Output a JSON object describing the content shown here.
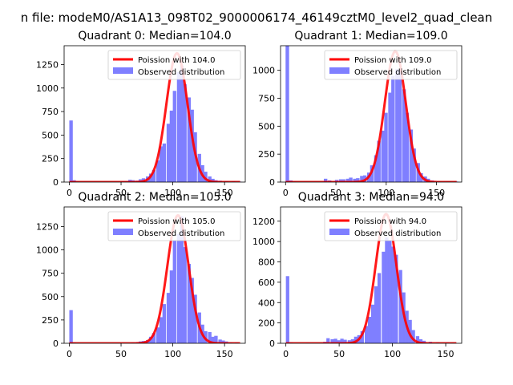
{
  "figure": {
    "suptitle": "n file: modeM0/AS1A13_098T02_9000006174_46149cztM0_level2_quad_clean"
  },
  "chart_data": [
    {
      "type": "bar",
      "title": "Quadrant 0: Median=104.0",
      "xlim": [
        -5,
        170
      ],
      "ylim": [
        0,
        1450
      ],
      "xticks": [
        0,
        50,
        100,
        150
      ],
      "yticks": [
        0,
        250,
        500,
        750,
        1000,
        1250
      ],
      "bin_width": 3.36,
      "hist_color": "#7f7fff",
      "fit_color": "#ff0000",
      "legend": {
        "placement": "top-right",
        "fit_label": "Poission with 104.0",
        "hist_label": "Observed distribution"
      },
      "poisson_mean": 104.0,
      "poisson_peak": 1370,
      "hist": [
        {
          "x": 0,
          "y": 655
        },
        {
          "x": 3,
          "y": 20
        },
        {
          "x": 6,
          "y": 5
        },
        {
          "x": 50,
          "y": 8
        },
        {
          "x": 54,
          "y": 10
        },
        {
          "x": 57,
          "y": 25
        },
        {
          "x": 60,
          "y": 20
        },
        {
          "x": 64,
          "y": 15
        },
        {
          "x": 67,
          "y": 30
        },
        {
          "x": 70,
          "y": 40
        },
        {
          "x": 74,
          "y": 60
        },
        {
          "x": 77,
          "y": 90
        },
        {
          "x": 80,
          "y": 130
        },
        {
          "x": 84,
          "y": 230
        },
        {
          "x": 87,
          "y": 380
        },
        {
          "x": 90,
          "y": 410
        },
        {
          "x": 94,
          "y": 620
        },
        {
          "x": 97,
          "y": 760
        },
        {
          "x": 100,
          "y": 970
        },
        {
          "x": 104,
          "y": 1170
        },
        {
          "x": 107,
          "y": 1240
        },
        {
          "x": 110,
          "y": 1040
        },
        {
          "x": 114,
          "y": 900
        },
        {
          "x": 117,
          "y": 770
        },
        {
          "x": 120,
          "y": 530
        },
        {
          "x": 124,
          "y": 300
        },
        {
          "x": 127,
          "y": 180
        },
        {
          "x": 130,
          "y": 110
        },
        {
          "x": 134,
          "y": 60
        },
        {
          "x": 137,
          "y": 35
        },
        {
          "x": 140,
          "y": 20
        },
        {
          "x": 144,
          "y": 15
        },
        {
          "x": 150,
          "y": 10
        },
        {
          "x": 157,
          "y": 8
        },
        {
          "x": 163,
          "y": 5
        }
      ]
    },
    {
      "type": "bar",
      "title": "Quadrant 1: Median=109.0",
      "xlim": [
        -5,
        175
      ],
      "ylim": [
        0,
        1220
      ],
      "xticks": [
        0,
        50,
        100,
        150
      ],
      "yticks": [
        0,
        250,
        500,
        750,
        1000
      ],
      "bin_width": 3.5,
      "hist_color": "#7f7fff",
      "fit_color": "#ff0000",
      "legend": {
        "placement": "top-right",
        "fit_label": "Poission with 109.0",
        "hist_label": "Observed distribution"
      },
      "poisson_mean": 109.0,
      "poisson_peak": 1170,
      "hist": [
        {
          "x": 0,
          "y": 1220
        },
        {
          "x": 3.5,
          "y": 15
        },
        {
          "x": 7,
          "y": 5
        },
        {
          "x": 38,
          "y": 30
        },
        {
          "x": 42,
          "y": 15
        },
        {
          "x": 49,
          "y": 20
        },
        {
          "x": 53,
          "y": 25
        },
        {
          "x": 56,
          "y": 25
        },
        {
          "x": 60,
          "y": 30
        },
        {
          "x": 63,
          "y": 40
        },
        {
          "x": 67,
          "y": 30
        },
        {
          "x": 70,
          "y": 35
        },
        {
          "x": 74,
          "y": 55
        },
        {
          "x": 77,
          "y": 60
        },
        {
          "x": 81,
          "y": 85
        },
        {
          "x": 84,
          "y": 150
        },
        {
          "x": 88,
          "y": 240
        },
        {
          "x": 91,
          "y": 370
        },
        {
          "x": 95,
          "y": 460
        },
        {
          "x": 98,
          "y": 620
        },
        {
          "x": 102,
          "y": 800
        },
        {
          "x": 105,
          "y": 950
        },
        {
          "x": 109,
          "y": 1010
        },
        {
          "x": 112,
          "y": 1000
        },
        {
          "x": 116,
          "y": 830
        },
        {
          "x": 119,
          "y": 620
        },
        {
          "x": 123,
          "y": 470
        },
        {
          "x": 126,
          "y": 300
        },
        {
          "x": 130,
          "y": 170
        },
        {
          "x": 133,
          "y": 80
        },
        {
          "x": 137,
          "y": 50
        },
        {
          "x": 140,
          "y": 30
        },
        {
          "x": 144,
          "y": 15
        },
        {
          "x": 150,
          "y": 8
        },
        {
          "x": 160,
          "y": 5
        },
        {
          "x": 168,
          "y": 5
        }
      ]
    },
    {
      "type": "bar",
      "title": "Quadrant 2: Median=105.0",
      "xlim": [
        -5,
        170
      ],
      "ylim": [
        0,
        1460
      ],
      "xticks": [
        0,
        50,
        100,
        150
      ],
      "yticks": [
        0,
        250,
        500,
        750,
        1000,
        1250
      ],
      "bin_width": 3.36,
      "hist_color": "#7f7fff",
      "fit_color": "#ff0000",
      "legend": {
        "placement": "top-right",
        "fit_label": "Poission with 105.0",
        "hist_label": "Observed distribution"
      },
      "poisson_mean": 105.0,
      "poisson_peak": 1370,
      "hist": [
        {
          "x": 0,
          "y": 355
        },
        {
          "x": 3,
          "y": 10
        },
        {
          "x": 60,
          "y": 8
        },
        {
          "x": 64,
          "y": 10
        },
        {
          "x": 67,
          "y": 20
        },
        {
          "x": 70,
          "y": 25
        },
        {
          "x": 74,
          "y": 35
        },
        {
          "x": 77,
          "y": 70
        },
        {
          "x": 80,
          "y": 110
        },
        {
          "x": 84,
          "y": 170
        },
        {
          "x": 87,
          "y": 280
        },
        {
          "x": 90,
          "y": 420
        },
        {
          "x": 94,
          "y": 540
        },
        {
          "x": 97,
          "y": 780
        },
        {
          "x": 100,
          "y": 1100
        },
        {
          "x": 104,
          "y": 1170
        },
        {
          "x": 107,
          "y": 1360
        },
        {
          "x": 110,
          "y": 1030
        },
        {
          "x": 114,
          "y": 850
        },
        {
          "x": 117,
          "y": 700
        },
        {
          "x": 120,
          "y": 520
        },
        {
          "x": 124,
          "y": 330
        },
        {
          "x": 127,
          "y": 200
        },
        {
          "x": 130,
          "y": 130
        },
        {
          "x": 134,
          "y": 120
        },
        {
          "x": 137,
          "y": 70
        },
        {
          "x": 140,
          "y": 80
        },
        {
          "x": 144,
          "y": 40
        },
        {
          "x": 147,
          "y": 30
        },
        {
          "x": 150,
          "y": 20
        },
        {
          "x": 154,
          "y": 10
        },
        {
          "x": 160,
          "y": 8
        }
      ]
    },
    {
      "type": "bar",
      "title": "Quadrant 3: Median=94.0",
      "xlim": [
        -5,
        165
      ],
      "ylim": [
        0,
        1340
      ],
      "xticks": [
        0,
        50,
        100,
        150
      ],
      "yticks": [
        0,
        200,
        400,
        600,
        800,
        1000,
        1200
      ],
      "bin_width": 3.2,
      "hist_color": "#7f7fff",
      "fit_color": "#ff0000",
      "legend": {
        "placement": "top-right",
        "fit_label": "Poission with 94.0",
        "hist_label": "Observed distribution"
      },
      "poisson_mean": 94.0,
      "poisson_peak": 1270,
      "hist": [
        {
          "x": 0,
          "y": 660
        },
        {
          "x": 3,
          "y": 10
        },
        {
          "x": 19,
          "y": 5
        },
        {
          "x": 35,
          "y": 15
        },
        {
          "x": 38,
          "y": 50
        },
        {
          "x": 42,
          "y": 40
        },
        {
          "x": 45,
          "y": 45
        },
        {
          "x": 48,
          "y": 30
        },
        {
          "x": 51,
          "y": 45
        },
        {
          "x": 54,
          "y": 35
        },
        {
          "x": 58,
          "y": 30
        },
        {
          "x": 61,
          "y": 40
        },
        {
          "x": 64,
          "y": 65
        },
        {
          "x": 67,
          "y": 80
        },
        {
          "x": 70,
          "y": 120
        },
        {
          "x": 74,
          "y": 170
        },
        {
          "x": 77,
          "y": 260
        },
        {
          "x": 80,
          "y": 380
        },
        {
          "x": 83,
          "y": 560
        },
        {
          "x": 86,
          "y": 690
        },
        {
          "x": 90,
          "y": 900
        },
        {
          "x": 93,
          "y": 1040
        },
        {
          "x": 96,
          "y": 1010
        },
        {
          "x": 99,
          "y": 950
        },
        {
          "x": 102,
          "y": 870
        },
        {
          "x": 106,
          "y": 720
        },
        {
          "x": 109,
          "y": 500
        },
        {
          "x": 112,
          "y": 320
        },
        {
          "x": 115,
          "y": 230
        },
        {
          "x": 118,
          "y": 130
        },
        {
          "x": 122,
          "y": 70
        },
        {
          "x": 125,
          "y": 40
        },
        {
          "x": 128,
          "y": 25
        },
        {
          "x": 134,
          "y": 15
        },
        {
          "x": 141,
          "y": 10
        },
        {
          "x": 150,
          "y": 8
        },
        {
          "x": 155,
          "y": 5
        }
      ]
    }
  ]
}
